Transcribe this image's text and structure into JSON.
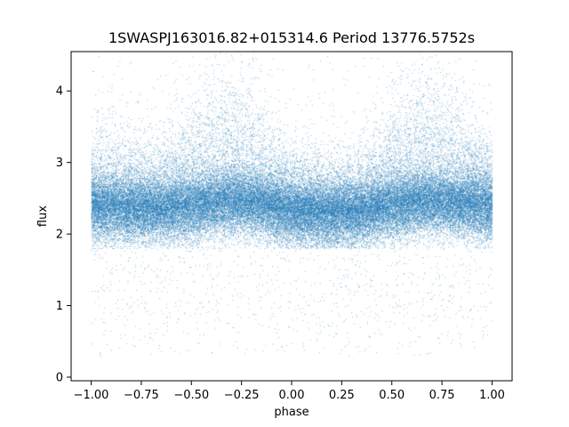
{
  "chart_data": {
    "type": "scatter",
    "title": "1SWASPJ163016.82+015314.6 Period 13776.5752s",
    "xlabel": "phase",
    "ylabel": "flux",
    "xlim": [
      -1.1,
      1.1
    ],
    "ylim": [
      -0.05,
      4.55
    ],
    "xticks": [
      -1.0,
      -0.75,
      -0.5,
      -0.25,
      0.0,
      0.25,
      0.5,
      0.75,
      1.0
    ],
    "xtick_labels": [
      "−1.00",
      "−0.75",
      "−0.50",
      "−0.25",
      "0.00",
      "0.25",
      "0.50",
      "0.75",
      "1.00"
    ],
    "yticks": [
      0,
      1,
      2,
      3,
      4
    ],
    "ytick_labels": [
      "0",
      "1",
      "2",
      "3",
      "4"
    ],
    "grid": false,
    "marker_color": "#1f77b4",
    "series": [
      {
        "x_range": [
          -1.0,
          1.0
        ],
        "point_count_approx": 60000,
        "phase_profile": {
          "phase": [
            -1.0,
            -0.9,
            -0.8,
            -0.7,
            -0.6,
            -0.5,
            -0.4,
            -0.3,
            -0.2,
            -0.1,
            0.0,
            0.1,
            0.2,
            0.3,
            0.4,
            0.5,
            0.6,
            0.7,
            0.8,
            0.9,
            1.0
          ],
          "core_flux": [
            2.35,
            2.35,
            2.33,
            2.32,
            2.33,
            2.37,
            2.42,
            2.45,
            2.42,
            2.35,
            2.3,
            2.28,
            2.27,
            2.28,
            2.32,
            2.37,
            2.42,
            2.45,
            2.42,
            2.38,
            2.35
          ],
          "upper_envelope": [
            3.3,
            3.3,
            3.25,
            3.2,
            3.3,
            3.6,
            3.9,
            4.0,
            3.8,
            3.3,
            3.1,
            3.05,
            3.0,
            3.05,
            3.25,
            3.6,
            3.9,
            4.0,
            3.85,
            3.4,
            3.3
          ],
          "lower_envelope": [
            1.8,
            1.8,
            1.8,
            1.8,
            1.8,
            1.8,
            1.8,
            1.8,
            1.8,
            1.8,
            1.8,
            1.8,
            1.8,
            1.8,
            1.8,
            1.8,
            1.8,
            1.8,
            1.8,
            1.8,
            1.8
          ]
        },
        "outlier_range": [
          0.3,
          4.5
        ]
      }
    ]
  }
}
